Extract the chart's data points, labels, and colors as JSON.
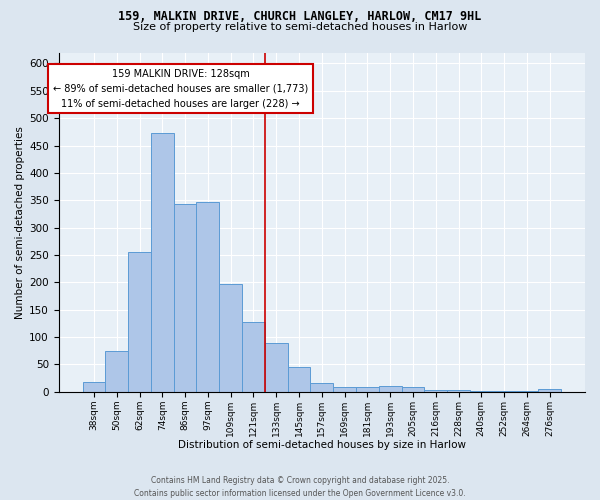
{
  "title_line1": "159, MALKIN DRIVE, CHURCH LANGLEY, HARLOW, CM17 9HL",
  "title_line2": "Size of property relative to semi-detached houses in Harlow",
  "categories": [
    "38sqm",
    "50sqm",
    "62sqm",
    "74sqm",
    "86sqm",
    "97sqm",
    "109sqm",
    "121sqm",
    "133sqm",
    "145sqm",
    "157sqm",
    "169sqm",
    "181sqm",
    "193sqm",
    "205sqm",
    "216sqm",
    "228sqm",
    "240sqm",
    "252sqm",
    "264sqm",
    "276sqm"
  ],
  "values": [
    18,
    74,
    255,
    472,
    344,
    347,
    197,
    127,
    89,
    46,
    16,
    9,
    8,
    10,
    9,
    3,
    3,
    2,
    1,
    1,
    5
  ],
  "bar_color": "#aec6e8",
  "bar_edge_color": "#5b9bd5",
  "property_line_x": 7.5,
  "annotation_title": "159 MALKIN DRIVE: 128sqm",
  "annotation_line1": "← 89% of semi-detached houses are smaller (1,773)",
  "annotation_line2": "11% of semi-detached houses are larger (228) →",
  "xlabel": "Distribution of semi-detached houses by size in Harlow",
  "ylabel": "Number of semi-detached properties",
  "ylim": [
    0,
    620
  ],
  "yticks": [
    0,
    50,
    100,
    150,
    200,
    250,
    300,
    350,
    400,
    450,
    500,
    550,
    600
  ],
  "footer_line1": "Contains HM Land Registry data © Crown copyright and database right 2025.",
  "footer_line2": "Contains public sector information licensed under the Open Government Licence v3.0.",
  "bg_color": "#dce6f0",
  "plot_bg_color": "#e8f0f7",
  "annotation_box_color": "#ffffff",
  "annotation_border_color": "#cc0000",
  "vline_color": "#cc0000",
  "grid_color": "#ffffff",
  "title1_fontsize": 8.5,
  "title2_fontsize": 8,
  "footer_fontsize": 5.5,
  "xlabel_fontsize": 7.5,
  "ylabel_fontsize": 7.5,
  "xtick_fontsize": 6.5,
  "ytick_fontsize": 7.5,
  "ann_fontsize": 7
}
